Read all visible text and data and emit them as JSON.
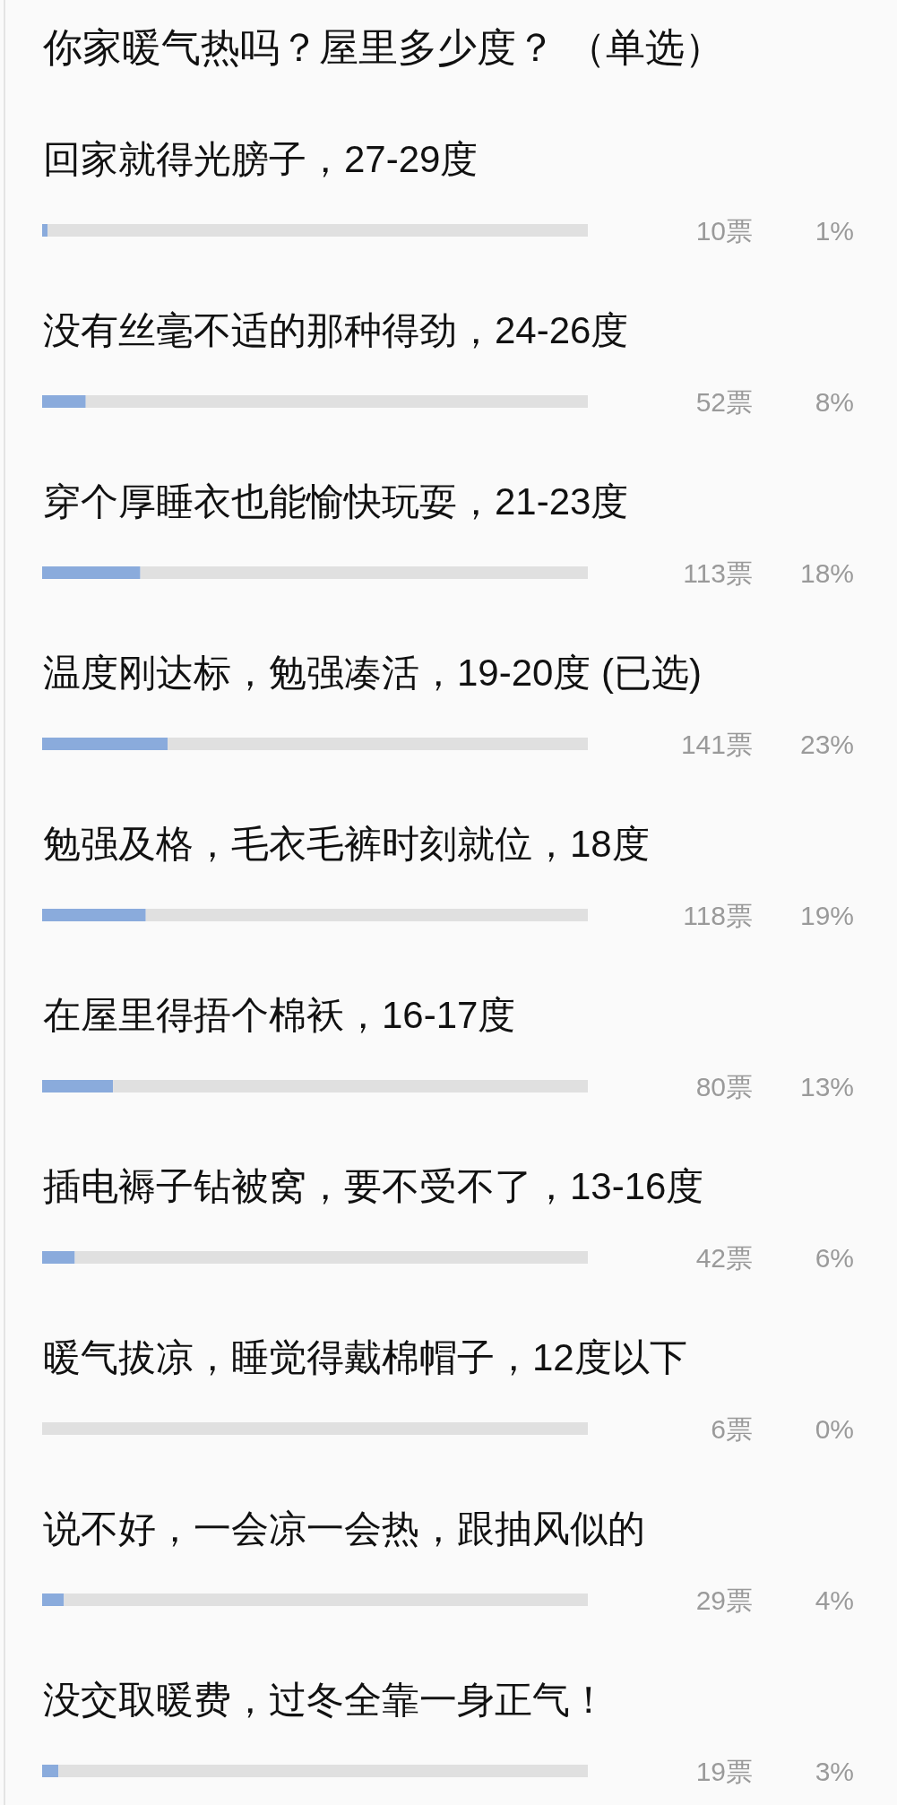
{
  "chart_data": {
    "type": "bar",
    "orientation": "horizontal",
    "stacked": true,
    "title": "你家暖气热吗？屋里多少度？ （单选）",
    "categories": [
      "回家就得光膀子，27-29度",
      "没有丝毫不适的那种得劲，24-26度",
      "穿个厚睡衣也能愉快玩耍，21-23度",
      "温度刚达标，勉强凑活，19-20度 (已选)",
      "勉强及格，毛衣毛裤时刻就位，18度",
      "在屋里得捂个棉袄，16-17度",
      "插电褥子钻被窝，要不受不了，13-16度",
      "暖气拔凉，睡觉得戴棉帽子，12度以下",
      "说不好，一会凉一会热，跟抽风似的",
      "没交取暖费，过冬全靠一身正气！"
    ],
    "series": [
      {
        "color": "#8aabdc",
        "values": [
          1,
          8,
          18,
          23,
          19,
          13,
          6,
          0,
          4,
          3
        ],
        "value_labels": [
          "1%",
          "8%",
          "18%",
          "23%",
          "19%",
          "13%",
          "6%",
          "0%",
          "4%",
          "3%"
        ]
      },
      {
        "color": "#e0e0e0",
        "values": [
          99,
          92,
          82,
          77,
          81,
          87,
          94,
          100,
          96,
          97
        ]
      }
    ],
    "xlim": [
      0,
      100
    ],
    "tick_labels": "y",
    "annotations": [
      "10票",
      "52票",
      "113票",
      "141票",
      "118票",
      "80票",
      "42票",
      "6票",
      "29票",
      "19票"
    ]
  }
}
